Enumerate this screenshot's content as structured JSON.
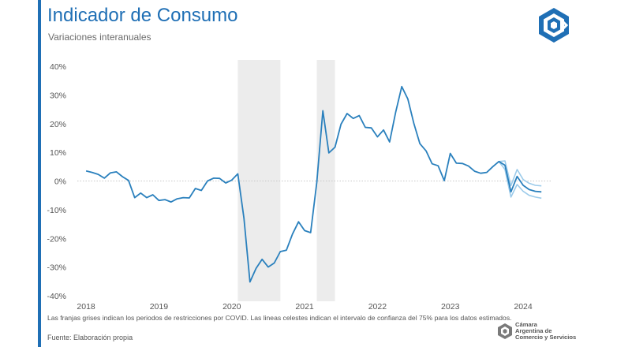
{
  "header": {
    "title": "Indicador de Consumo",
    "subtitle": "Variaciones interanuales"
  },
  "footer": {
    "note": "Las franjas grises indican los periodos de restricciones por COVID. Las lineas celestes indican el intervalo de confianza del 75% para los datos estimados.",
    "source": "Fuente: Elaboración propia",
    "org_name_lines": [
      "Cámara",
      "Argentina de",
      "Comercio y Servicios"
    ]
  },
  "colors": {
    "accent": "#1f6fb5",
    "series": "#2a80bd",
    "confidence": "#9ccbea",
    "shade": "#ececec"
  },
  "chart_data": {
    "type": "line",
    "title": "Indicador de Consumo",
    "subtitle": "Variaciones interanuales",
    "xlabel": "",
    "ylabel": "",
    "xlim": [
      2017.88,
      2024.4
    ],
    "ylim": [
      -40,
      40
    ],
    "yticks": [
      40,
      30,
      20,
      10,
      0,
      -10,
      -20,
      -30,
      -40
    ],
    "ytick_labels": [
      "40%",
      "30%",
      "20%",
      "10%",
      "0%",
      "-10%",
      "-20%",
      "-30%",
      "-40%"
    ],
    "xticks": [
      2018,
      2019,
      2020,
      2021,
      2022,
      2023,
      2024
    ],
    "xtick_labels": [
      "2018",
      "2019",
      "2020",
      "2021",
      "2022",
      "2023",
      "2024"
    ],
    "zero_line": "dotted",
    "shaded_periods": [
      [
        2020.083,
        2020.667
      ],
      [
        2021.167,
        2021.417
      ]
    ],
    "series": [
      {
        "values": [
          [
            2018.0,
            3.5
          ],
          [
            2018.083,
            3.0
          ],
          [
            2018.167,
            2.3
          ],
          [
            2018.25,
            1.0
          ],
          [
            2018.333,
            2.8
          ],
          [
            2018.417,
            3.2
          ],
          [
            2018.5,
            1.5
          ],
          [
            2018.583,
            0.2
          ],
          [
            2018.667,
            -5.8
          ],
          [
            2018.75,
            -4.2
          ],
          [
            2018.833,
            -5.8
          ],
          [
            2018.917,
            -4.8
          ],
          [
            2019.0,
            -6.8
          ],
          [
            2019.083,
            -6.5
          ],
          [
            2019.167,
            -7.3
          ],
          [
            2019.25,
            -6.2
          ],
          [
            2019.333,
            -5.8
          ],
          [
            2019.417,
            -5.9
          ],
          [
            2019.5,
            -2.6
          ],
          [
            2019.583,
            -3.3
          ],
          [
            2019.667,
            0.0
          ],
          [
            2019.75,
            1.0
          ],
          [
            2019.833,
            0.9
          ],
          [
            2019.917,
            -0.7
          ],
          [
            2020.0,
            0.3
          ],
          [
            2020.083,
            2.5
          ],
          [
            2020.167,
            -13.0
          ],
          [
            2020.25,
            -35.2
          ],
          [
            2020.333,
            -30.5
          ],
          [
            2020.417,
            -27.3
          ],
          [
            2020.5,
            -30.0
          ],
          [
            2020.583,
            -28.6
          ],
          [
            2020.667,
            -24.6
          ],
          [
            2020.75,
            -24.1
          ],
          [
            2020.833,
            -18.5
          ],
          [
            2020.917,
            -14.2
          ],
          [
            2021.0,
            -17.3
          ],
          [
            2021.083,
            -18.0
          ],
          [
            2021.167,
            -0.5
          ],
          [
            2021.25,
            24.5
          ],
          [
            2021.333,
            9.8
          ],
          [
            2021.417,
            11.8
          ],
          [
            2021.5,
            19.8
          ],
          [
            2021.583,
            23.5
          ],
          [
            2021.667,
            21.8
          ],
          [
            2021.75,
            22.8
          ],
          [
            2021.833,
            18.7
          ],
          [
            2021.917,
            18.5
          ],
          [
            2022.0,
            15.4
          ],
          [
            2022.083,
            17.8
          ],
          [
            2022.167,
            13.6
          ],
          [
            2022.25,
            24.0
          ],
          [
            2022.333,
            32.9
          ],
          [
            2022.417,
            28.6
          ],
          [
            2022.5,
            20.0
          ],
          [
            2022.583,
            13.0
          ],
          [
            2022.667,
            10.5
          ],
          [
            2022.75,
            6.0
          ],
          [
            2022.833,
            5.3
          ],
          [
            2022.917,
            0.1
          ],
          [
            2023.0,
            9.6
          ],
          [
            2023.083,
            6.2
          ],
          [
            2023.167,
            6.1
          ],
          [
            2023.25,
            5.2
          ],
          [
            2023.333,
            3.4
          ],
          [
            2023.417,
            2.7
          ],
          [
            2023.5,
            3.0
          ],
          [
            2023.583,
            5.0
          ],
          [
            2023.667,
            6.8
          ],
          [
            2023.75,
            5.5
          ],
          [
            2023.833,
            -3.8
          ],
          [
            2023.917,
            1.6
          ],
          [
            2024.0,
            -1.5
          ],
          [
            2024.083,
            -3.0
          ],
          [
            2024.167,
            -3.6
          ],
          [
            2024.25,
            -3.8
          ]
        ]
      },
      {
        "values": [
          [
            2023.667,
            6.8
          ],
          [
            2023.75,
            7.0
          ],
          [
            2023.833,
            -1.6
          ],
          [
            2023.917,
            4.0
          ],
          [
            2024.0,
            0.5
          ],
          [
            2024.083,
            -0.8
          ],
          [
            2024.167,
            -1.5
          ],
          [
            2024.25,
            -1.7
          ]
        ]
      },
      {
        "values": [
          [
            2023.667,
            6.8
          ],
          [
            2023.75,
            4.0
          ],
          [
            2023.833,
            -5.6
          ],
          [
            2023.917,
            -1.2
          ],
          [
            2024.0,
            -3.6
          ],
          [
            2024.083,
            -5.0
          ],
          [
            2024.167,
            -5.6
          ],
          [
            2024.25,
            -6.0
          ]
        ]
      }
    ]
  }
}
